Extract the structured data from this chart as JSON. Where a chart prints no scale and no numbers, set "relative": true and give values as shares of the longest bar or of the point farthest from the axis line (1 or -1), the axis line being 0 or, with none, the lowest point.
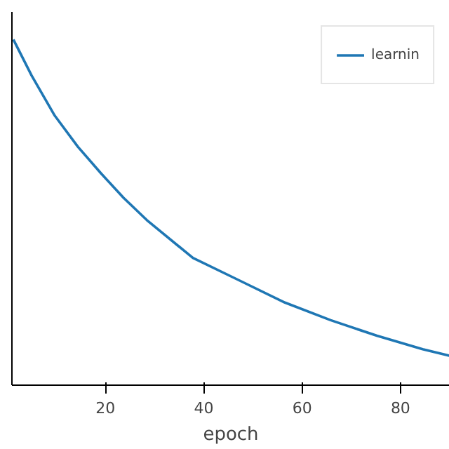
{
  "chart_data": {
    "type": "line",
    "xlabel": "epoch",
    "relative": true,
    "tick_labels": "x",
    "legend": "top right",
    "grid": false,
    "xlim": [
      1,
      90
    ],
    "xticks": [
      20,
      40,
      60,
      80
    ],
    "x": [
      1.3,
      5.0,
      9.7,
      14.4,
      19.1,
      23.7,
      28.4,
      37.8,
      47.1,
      56.5,
      65.8,
      75.2,
      84.5,
      90
    ],
    "series": [
      {
        "name": "learnin",
        "color": "#1f77b4",
        "values": [
          1.0,
          0.896,
          0.78,
          0.69,
          0.613,
          0.542,
          0.478,
          0.368,
          0.304,
          0.239,
          0.188,
          0.143,
          0.104,
          0.085
        ]
      }
    ]
  }
}
